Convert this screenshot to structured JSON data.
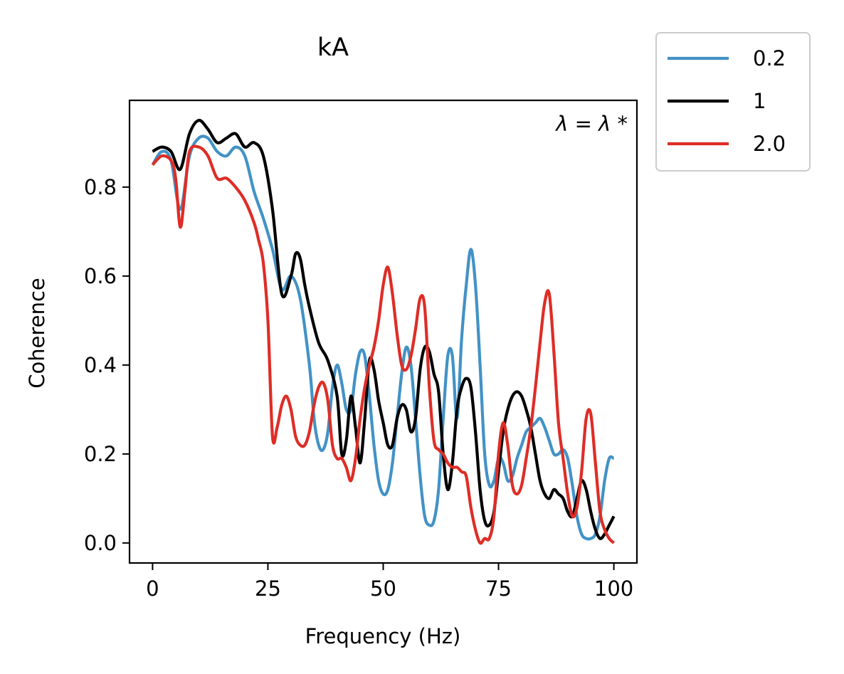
{
  "chart_data": {
    "type": "line",
    "title": "kA",
    "xlabel": "Frequency (Hz)",
    "ylabel": "Coherence",
    "annotation": "λ = λ *",
    "xlim": [
      -5,
      105
    ],
    "ylim": [
      -0.045,
      0.995
    ],
    "xticks": [
      0,
      25,
      50,
      75,
      100
    ],
    "yticks": [
      0.0,
      0.2,
      0.4,
      0.6,
      0.8
    ],
    "xtick_labels": [
      "0",
      "25",
      "50",
      "75",
      "100"
    ],
    "ytick_labels": [
      "0.0",
      "0.2",
      "0.4",
      "0.6",
      "0.8"
    ],
    "grid": false,
    "legend": {
      "placement": "outside-top-right"
    },
    "series": [
      {
        "name": "0.2",
        "color": "#4292c6",
        "points": [
          [
            0,
            0.85
          ],
          [
            2,
            0.88
          ],
          [
            4,
            0.86
          ],
          [
            6,
            0.75
          ],
          [
            8,
            0.87
          ],
          [
            10,
            0.91
          ],
          [
            12,
            0.91
          ],
          [
            14,
            0.88
          ],
          [
            16,
            0.87
          ],
          [
            18,
            0.89
          ],
          [
            20,
            0.87
          ],
          [
            22,
            0.79
          ],
          [
            24,
            0.73
          ],
          [
            26,
            0.66
          ],
          [
            28,
            0.57
          ],
          [
            30,
            0.6
          ],
          [
            32,
            0.55
          ],
          [
            34,
            0.4
          ],
          [
            35,
            0.28
          ],
          [
            36,
            0.22
          ],
          [
            37,
            0.21
          ],
          [
            38,
            0.25
          ],
          [
            39,
            0.35
          ],
          [
            40,
            0.4
          ],
          [
            41,
            0.36
          ],
          [
            42,
            0.3
          ],
          [
            43,
            0.3
          ],
          [
            44,
            0.38
          ],
          [
            45,
            0.43
          ],
          [
            46,
            0.42
          ],
          [
            47,
            0.33
          ],
          [
            48,
            0.22
          ],
          [
            49,
            0.14
          ],
          [
            50,
            0.11
          ],
          [
            51,
            0.12
          ],
          [
            52,
            0.18
          ],
          [
            53,
            0.28
          ],
          [
            54,
            0.38
          ],
          [
            55,
            0.44
          ],
          [
            56,
            0.4
          ],
          [
            57,
            0.28
          ],
          [
            58,
            0.15
          ],
          [
            59,
            0.06
          ],
          [
            60,
            0.04
          ],
          [
            61,
            0.05
          ],
          [
            62,
            0.12
          ],
          [
            63,
            0.28
          ],
          [
            64,
            0.42
          ],
          [
            65,
            0.42
          ],
          [
            66,
            0.28
          ],
          [
            67,
            0.46
          ],
          [
            68,
            0.58
          ],
          [
            69,
            0.66
          ],
          [
            70,
            0.58
          ],
          [
            71,
            0.4
          ],
          [
            72,
            0.2
          ],
          [
            73,
            0.13
          ],
          [
            74,
            0.14
          ],
          [
            75,
            0.19
          ],
          [
            76,
            0.18
          ],
          [
            77,
            0.14
          ],
          [
            78,
            0.15
          ],
          [
            79,
            0.19
          ],
          [
            80,
            0.22
          ],
          [
            81,
            0.25
          ],
          [
            82,
            0.26
          ],
          [
            83,
            0.27
          ],
          [
            84,
            0.28
          ],
          [
            85,
            0.26
          ],
          [
            86,
            0.23
          ],
          [
            87,
            0.2
          ],
          [
            88,
            0.2
          ],
          [
            89,
            0.21
          ],
          [
            90,
            0.19
          ],
          [
            91,
            0.13
          ],
          [
            92,
            0.06
          ],
          [
            93,
            0.02
          ],
          [
            94,
            0.01
          ],
          [
            95,
            0.01
          ],
          [
            96,
            0.02
          ],
          [
            97,
            0.06
          ],
          [
            98,
            0.14
          ],
          [
            99,
            0.19
          ],
          [
            100,
            0.19
          ]
        ]
      },
      {
        "name": "1",
        "color": "#000000",
        "points": [
          [
            0,
            0.88
          ],
          [
            2,
            0.89
          ],
          [
            4,
            0.88
          ],
          [
            6,
            0.84
          ],
          [
            8,
            0.92
          ],
          [
            10,
            0.95
          ],
          [
            12,
            0.93
          ],
          [
            14,
            0.9
          ],
          [
            16,
            0.91
          ],
          [
            18,
            0.92
          ],
          [
            20,
            0.89
          ],
          [
            22,
            0.9
          ],
          [
            24,
            0.87
          ],
          [
            26,
            0.75
          ],
          [
            28,
            0.56
          ],
          [
            30,
            0.6
          ],
          [
            31,
            0.65
          ],
          [
            32,
            0.64
          ],
          [
            33,
            0.58
          ],
          [
            34,
            0.53
          ],
          [
            36,
            0.45
          ],
          [
            38,
            0.41
          ],
          [
            40,
            0.33
          ],
          [
            41,
            0.2
          ],
          [
            42,
            0.23
          ],
          [
            43,
            0.33
          ],
          [
            44,
            0.26
          ],
          [
            45,
            0.18
          ],
          [
            46,
            0.28
          ],
          [
            47,
            0.41
          ],
          [
            48,
            0.39
          ],
          [
            49,
            0.32
          ],
          [
            50,
            0.27
          ],
          [
            51,
            0.22
          ],
          [
            52,
            0.22
          ],
          [
            53,
            0.28
          ],
          [
            54,
            0.31
          ],
          [
            55,
            0.3
          ],
          [
            56,
            0.25
          ],
          [
            57,
            0.28
          ],
          [
            58,
            0.39
          ],
          [
            59,
            0.44
          ],
          [
            60,
            0.43
          ],
          [
            61,
            0.38
          ],
          [
            62,
            0.34
          ],
          [
            63,
            0.2
          ],
          [
            64,
            0.12
          ],
          [
            65,
            0.18
          ],
          [
            66,
            0.3
          ],
          [
            67,
            0.35
          ],
          [
            68,
            0.37
          ],
          [
            69,
            0.35
          ],
          [
            70,
            0.25
          ],
          [
            71,
            0.12
          ],
          [
            72,
            0.05
          ],
          [
            73,
            0.04
          ],
          [
            74,
            0.07
          ],
          [
            75,
            0.16
          ],
          [
            76,
            0.25
          ],
          [
            77,
            0.3
          ],
          [
            78,
            0.33
          ],
          [
            79,
            0.34
          ],
          [
            80,
            0.33
          ],
          [
            81,
            0.3
          ],
          [
            82,
            0.26
          ],
          [
            83,
            0.2
          ],
          [
            84,
            0.14
          ],
          [
            85,
            0.11
          ],
          [
            86,
            0.1
          ],
          [
            87,
            0.12
          ],
          [
            88,
            0.11
          ],
          [
            89,
            0.1
          ],
          [
            90,
            0.07
          ],
          [
            91,
            0.06
          ],
          [
            92,
            0.1
          ],
          [
            93,
            0.14
          ],
          [
            94,
            0.12
          ],
          [
            95,
            0.07
          ],
          [
            96,
            0.03
          ],
          [
            97,
            0.01
          ],
          [
            98,
            0.02
          ],
          [
            99,
            0.04
          ],
          [
            100,
            0.06
          ]
        ]
      },
      {
        "name": "2.0",
        "color": "#de2d26",
        "points": [
          [
            0,
            0.85
          ],
          [
            2,
            0.87
          ],
          [
            4,
            0.86
          ],
          [
            5,
            0.82
          ],
          [
            6,
            0.71
          ],
          [
            7,
            0.79
          ],
          [
            8,
            0.88
          ],
          [
            10,
            0.89
          ],
          [
            12,
            0.87
          ],
          [
            14,
            0.82
          ],
          [
            16,
            0.82
          ],
          [
            18,
            0.8
          ],
          [
            20,
            0.77
          ],
          [
            22,
            0.72
          ],
          [
            23,
            0.68
          ],
          [
            24,
            0.63
          ],
          [
            25,
            0.5
          ],
          [
            26,
            0.24
          ],
          [
            27,
            0.26
          ],
          [
            28,
            0.31
          ],
          [
            29,
            0.33
          ],
          [
            30,
            0.3
          ],
          [
            31,
            0.24
          ],
          [
            32,
            0.22
          ],
          [
            33,
            0.22
          ],
          [
            34,
            0.25
          ],
          [
            35,
            0.31
          ],
          [
            36,
            0.35
          ],
          [
            37,
            0.36
          ],
          [
            38,
            0.32
          ],
          [
            39,
            0.22
          ],
          [
            40,
            0.19
          ],
          [
            41,
            0.19
          ],
          [
            42,
            0.17
          ],
          [
            43,
            0.14
          ],
          [
            44,
            0.19
          ],
          [
            45,
            0.28
          ],
          [
            46,
            0.35
          ],
          [
            47,
            0.4
          ],
          [
            48,
            0.44
          ],
          [
            49,
            0.5
          ],
          [
            50,
            0.58
          ],
          [
            51,
            0.62
          ],
          [
            52,
            0.56
          ],
          [
            53,
            0.47
          ],
          [
            54,
            0.4
          ],
          [
            55,
            0.39
          ],
          [
            56,
            0.42
          ],
          [
            57,
            0.48
          ],
          [
            58,
            0.55
          ],
          [
            59,
            0.53
          ],
          [
            60,
            0.35
          ],
          [
            61,
            0.23
          ],
          [
            62,
            0.21
          ],
          [
            63,
            0.2
          ],
          [
            64,
            0.18
          ],
          [
            65,
            0.17
          ],
          [
            66,
            0.17
          ],
          [
            67,
            0.16
          ],
          [
            68,
            0.15
          ],
          [
            69,
            0.08
          ],
          [
            70,
            0.03
          ],
          [
            71,
            0.0
          ],
          [
            72,
            0.01
          ],
          [
            73,
            0.01
          ],
          [
            74,
            0.06
          ],
          [
            75,
            0.2
          ],
          [
            76,
            0.27
          ],
          [
            77,
            0.22
          ],
          [
            78,
            0.13
          ],
          [
            79,
            0.11
          ],
          [
            80,
            0.13
          ],
          [
            81,
            0.19
          ],
          [
            82,
            0.26
          ],
          [
            83,
            0.35
          ],
          [
            84,
            0.45
          ],
          [
            85,
            0.54
          ],
          [
            86,
            0.56
          ],
          [
            87,
            0.43
          ],
          [
            88,
            0.27
          ],
          [
            89,
            0.19
          ],
          [
            90,
            0.11
          ],
          [
            91,
            0.06
          ],
          [
            92,
            0.08
          ],
          [
            93,
            0.16
          ],
          [
            94,
            0.28
          ],
          [
            95,
            0.29
          ],
          [
            96,
            0.18
          ],
          [
            97,
            0.07
          ],
          [
            98,
            0.03
          ],
          [
            99,
            0.01
          ],
          [
            100,
            0.0
          ]
        ]
      }
    ]
  }
}
